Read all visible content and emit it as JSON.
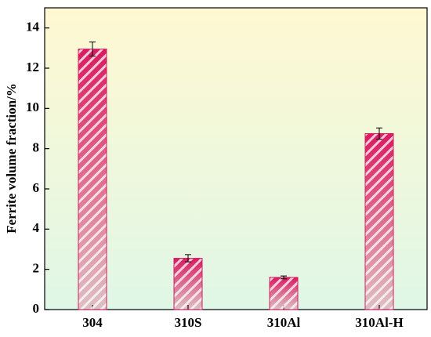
{
  "chart_data": {
    "type": "bar",
    "y_label": "Ferrite volume fraction/%",
    "categories": [
      "304",
      "310S",
      "310Al",
      "310Al-H"
    ],
    "values": [
      12.95,
      2.55,
      1.6,
      8.75
    ],
    "errors": [
      0.35,
      0.18,
      0.07,
      0.28
    ],
    "color": "#d81b60",
    "ylim": [
      0,
      15
    ],
    "yticks": [
      0,
      2,
      4,
      6,
      8,
      10,
      12,
      14
    ]
  }
}
